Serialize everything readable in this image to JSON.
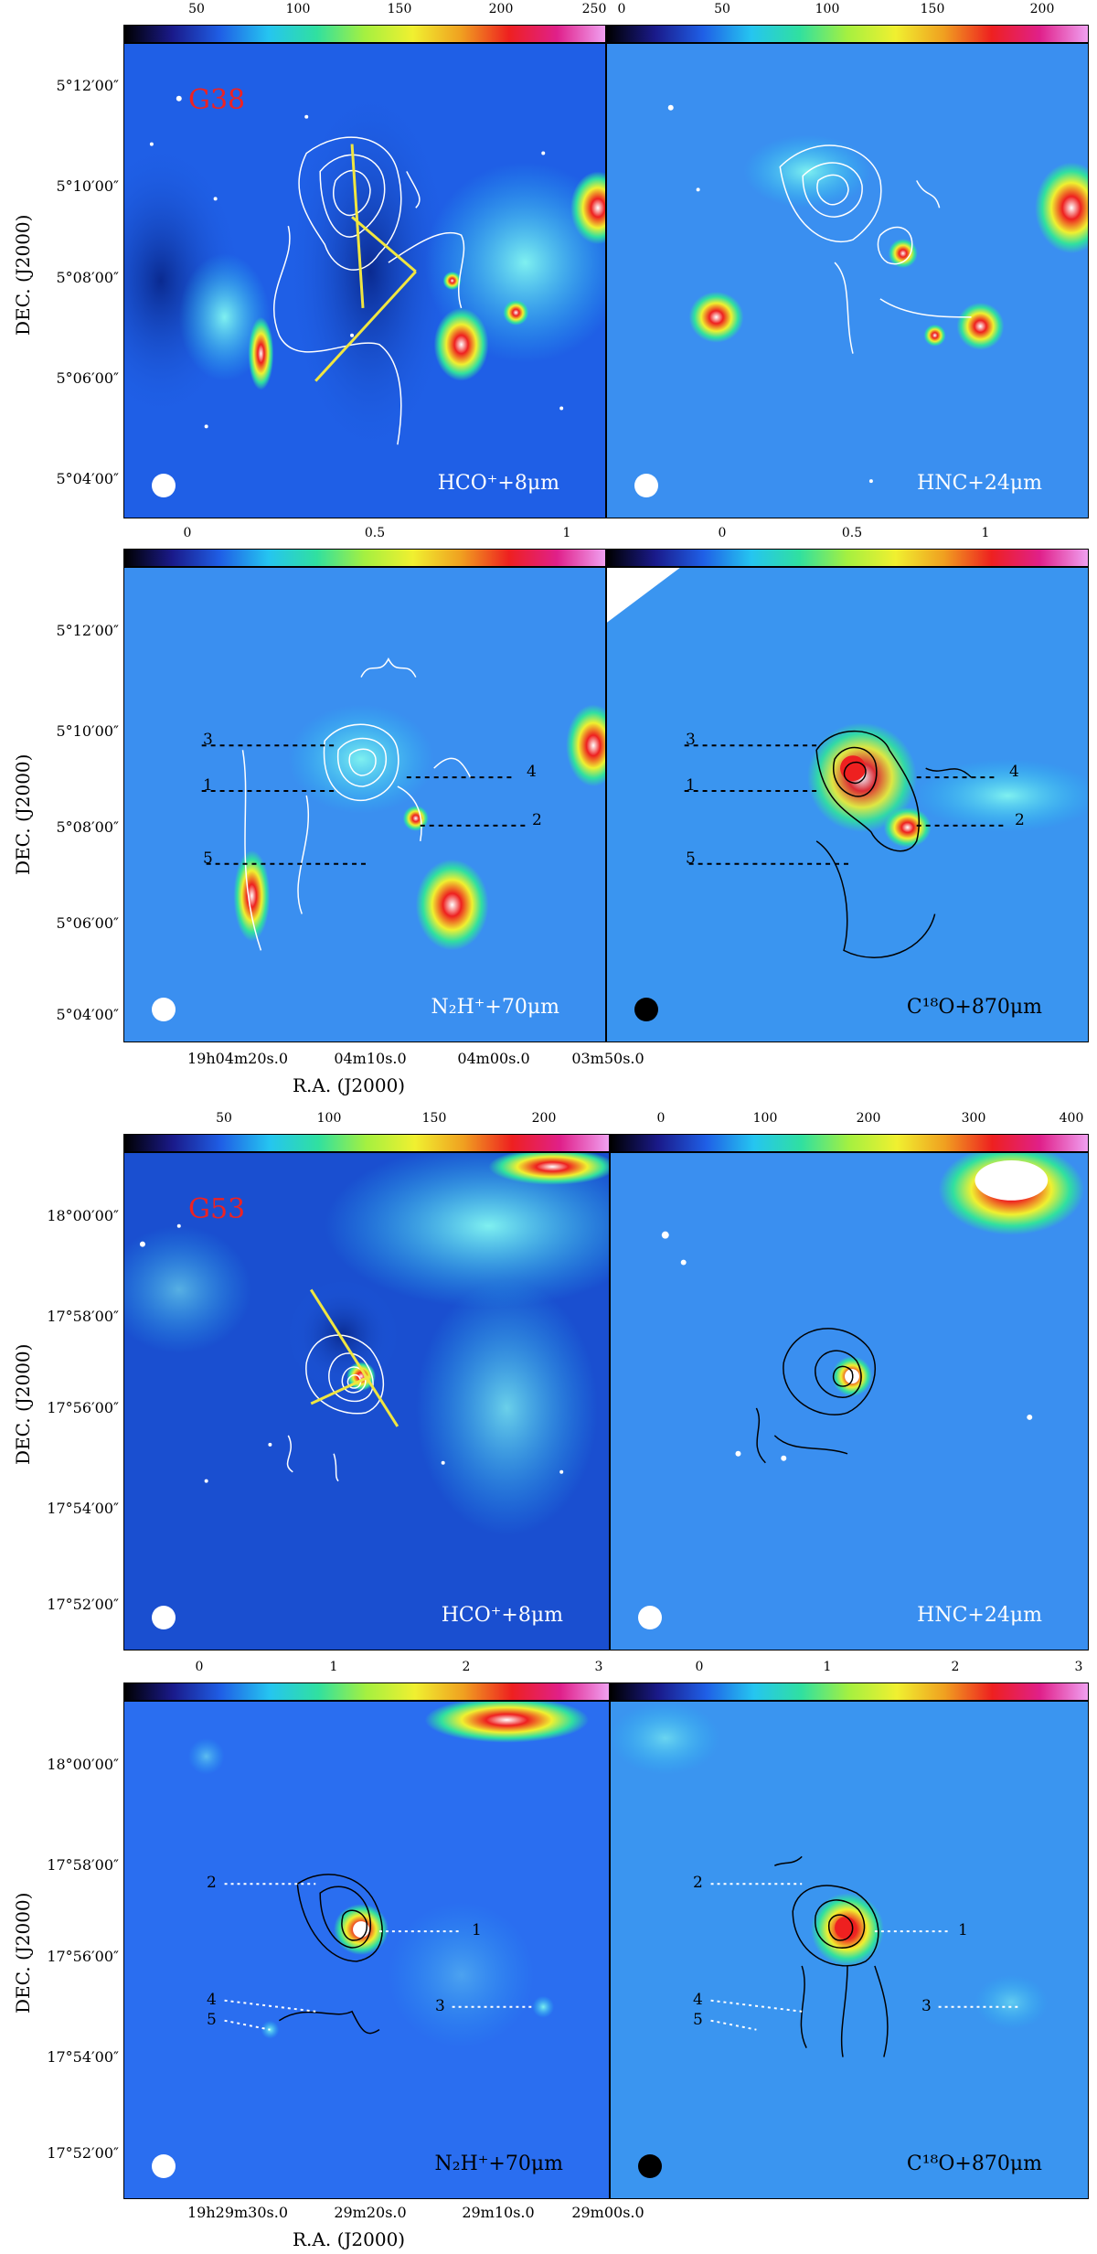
{
  "figure": {
    "colors": {
      "background_blue": "#1f5fe6",
      "white_contour": "#ffffff",
      "black_contour": "#000000",
      "yellow_line": "#f0e640",
      "source_label": "#ee2222",
      "dashed_line": "#000000"
    },
    "colorbar_palette": [
      "#000000",
      "#1a1a8a",
      "#1f5fe6",
      "#25c5f0",
      "#30e0a0",
      "#a5f040",
      "#f0f030",
      "#f0a020",
      "#ee2020",
      "#e0208a",
      "#f0a0f0"
    ],
    "sections": [
      {
        "source_label": "G38",
        "ra_axis_title": "R.A.  (J2000)",
        "dec_axis_title": "DEC.  (J2000)",
        "dec_ticks_top": [
          "5°12′00″",
          "5°10′00″",
          "5°08′00″",
          "5°06′00″",
          "5°04′00″"
        ],
        "dec_ticks_bottom": [
          "5°12′00″",
          "5°10′00″",
          "5°08′00″",
          "5°06′00″",
          "5°04′00″"
        ],
        "ra_ticks": [
          "19h04m20s.0",
          "04m10s.0",
          "04m00s.0",
          "03m50s.0"
        ],
        "panels": [
          {
            "tag": "HCO⁺+8μm",
            "colorbar_ticks": [
              "50",
              "100",
              "150",
              "200",
              "250"
            ],
            "beam": "white",
            "contours": "white",
            "has_yellow_lines": true
          },
          {
            "tag": "HNC+24μm",
            "colorbar_ticks": [
              "0",
              "50",
              "100",
              "150",
              "200"
            ],
            "beam": "white",
            "contours": "white"
          },
          {
            "tag": "N₂H⁺+70μm",
            "colorbar_ticks": [
              "0",
              "0.5",
              "1"
            ],
            "beam": "white",
            "contours": "white",
            "cut_numbers": [
              "3",
              "1",
              "4",
              "2",
              "5"
            ]
          },
          {
            "tag": "C¹⁸O+870μm",
            "colorbar_ticks": [
              "0",
              "0.5",
              "1"
            ],
            "beam": "black",
            "contours": "black",
            "cut_numbers": [
              "3",
              "1",
              "4",
              "2",
              "5"
            ]
          }
        ]
      },
      {
        "source_label": "G53",
        "ra_axis_title": "R.A.  (J2000)",
        "dec_axis_title": "DEC.  (J2000)",
        "dec_ticks_top": [
          "18°00′00″",
          "17°58′00″",
          "17°56′00″",
          "17°54′00″",
          "17°52′00″"
        ],
        "dec_ticks_bottom": [
          "18°00′00″",
          "17°58′00″",
          "17°56′00″",
          "17°54′00″",
          "17°52′00″"
        ],
        "ra_ticks": [
          "19h29m30s.0",
          "29m20s.0",
          "29m10s.0",
          "29m00s.0"
        ],
        "panels": [
          {
            "tag": "HCO⁺+8μm",
            "colorbar_ticks": [
              "50",
              "100",
              "150",
              "200"
            ],
            "beam": "white",
            "contours": "white",
            "has_yellow_lines": true
          },
          {
            "tag": "HNC+24μm",
            "colorbar_ticks": [
              "0",
              "100",
              "200",
              "300",
              "400"
            ],
            "beam": "white",
            "contours": "black"
          },
          {
            "tag": "N₂H⁺+70μm",
            "colorbar_ticks": [
              "0",
              "1",
              "2",
              "3"
            ],
            "beam": "white",
            "contours": "black",
            "cut_numbers": [
              "2",
              "1",
              "4",
              "5",
              "3"
            ]
          },
          {
            "tag": "C¹⁸O+870μm",
            "colorbar_ticks": [
              "0",
              "1",
              "2",
              "3"
            ],
            "beam": "black",
            "contours": "black",
            "cut_numbers": [
              "2",
              "1",
              "4",
              "5",
              "3"
            ]
          }
        ]
      }
    ]
  }
}
